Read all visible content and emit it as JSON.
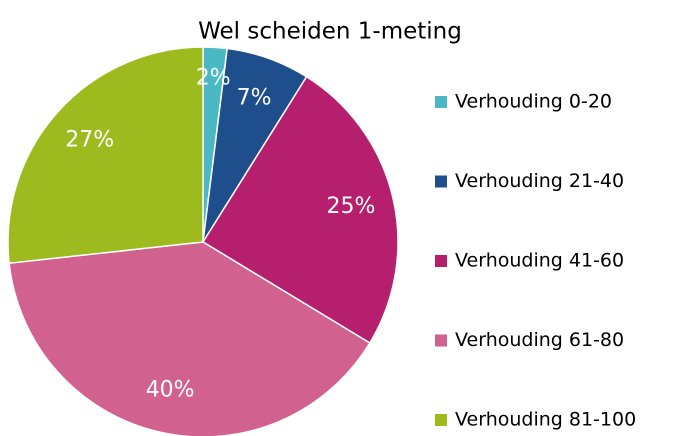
{
  "chart_data": {
    "type": "pie",
    "title": "Wel scheiden 1-meting",
    "categories": [
      "Verhouding 0-20",
      "Verhouding 21-40",
      "Verhouding 41-60",
      "Verhouding 61-80",
      "Verhouding 81-100"
    ],
    "values": [
      2,
      7,
      25,
      40,
      27
    ],
    "value_labels": [
      "2%",
      "7%",
      "25%",
      "40%",
      "27%"
    ],
    "colors": [
      "#4bb9c4",
      "#1f4e8c",
      "#b51f6e",
      "#d1628f",
      "#9dbb1e"
    ],
    "legend": "right"
  }
}
